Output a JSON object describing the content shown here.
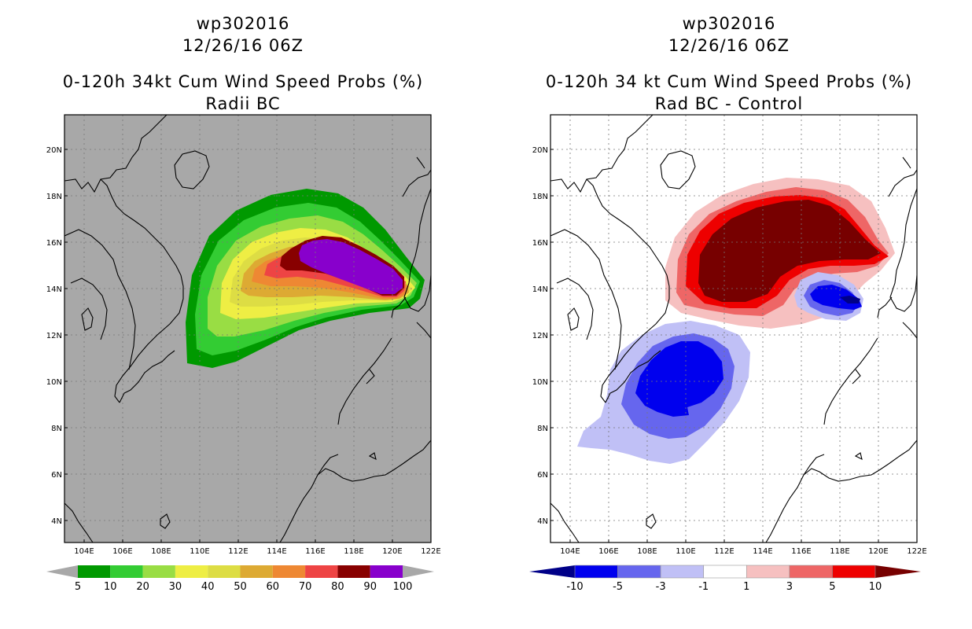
{
  "left_panel": {
    "storm_id": "wp302016",
    "datetime": "12/26/16 06Z",
    "title": "0-120h 34kt Cum Wind Speed Probs (%)",
    "subtitle": "Radii BC",
    "legend": {
      "labels": [
        "5",
        "10",
        "20",
        "30",
        "40",
        "50",
        "60",
        "70",
        "80",
        "90",
        "100"
      ],
      "colors": [
        "#009900",
        "#33cc33",
        "#99dd44",
        "#eeee44",
        "#dddd44",
        "#ddaa33",
        "#ee8833",
        "#ee4444",
        "#880000",
        "#8800cc"
      ],
      "end_color": "#a8a8a8"
    }
  },
  "right_panel": {
    "storm_id": "wp302016",
    "datetime": "12/26/16 06Z",
    "title": "0-120h 34 kt Cum Wind Speed Probs (%)",
    "subtitle": "Rad BC - Control",
    "legend": {
      "labels": [
        "-10",
        "-5",
        "-3",
        "-1",
        "1",
        "3",
        "5",
        "10"
      ],
      "colors": [
        "#0000ee",
        "#6666ee",
        "#c0c0f6",
        "#ffffff",
        "#f6c0c0",
        "#ee6666",
        "#ee0000"
      ],
      "low_end_color": "#000088",
      "high_end_color": "#770000"
    }
  },
  "map": {
    "lat_labels": [
      "20N",
      "18N",
      "16N",
      "14N",
      "12N",
      "10N",
      "8N",
      "6N",
      "4N"
    ],
    "lon_labels": [
      "104E",
      "106E",
      "108E",
      "110E",
      "112E",
      "114E",
      "116E",
      "118E",
      "120E",
      "122E"
    ]
  }
}
